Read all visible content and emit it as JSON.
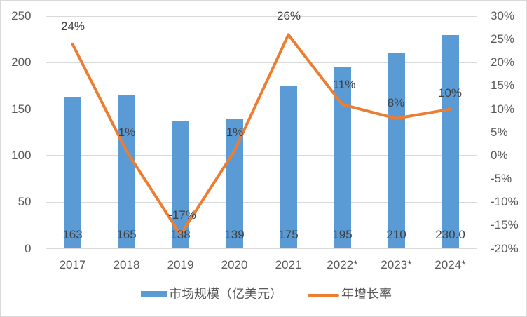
{
  "chart_data": {
    "type": "combo",
    "categories": [
      "2017",
      "2018",
      "2019",
      "2020",
      "2021",
      "2022*",
      "2023*",
      "2024*"
    ],
    "series": [
      {
        "name": "市场规模（亿美元）",
        "type": "bar",
        "axis": "left",
        "color": "#5b9bd5",
        "values": [
          163,
          165,
          138,
          139,
          175,
          195,
          210,
          230
        ],
        "labels": [
          "163",
          "165",
          "138",
          "139",
          "175",
          "195",
          "210",
          "230.0"
        ]
      },
      {
        "name": "年增长率",
        "type": "line",
        "axis": "right",
        "color": "#ed7d31",
        "values": [
          24,
          1,
          -17,
          1,
          26,
          11,
          8,
          10
        ],
        "labels": [
          "24%",
          "1%",
          "-17%",
          "1%",
          "26%",
          "11%",
          "8%",
          "10%"
        ]
      }
    ],
    "left_axis": {
      "min": 0,
      "max": 250,
      "step": 50,
      "ticks": [
        "0",
        "50",
        "100",
        "150",
        "200",
        "250"
      ]
    },
    "right_axis": {
      "min": -20,
      "max": 30,
      "step": 5,
      "ticks": [
        "-20%",
        "-15%",
        "-10%",
        "-5%",
        "0%",
        "5%",
        "10%",
        "15%",
        "20%",
        "25%",
        "30%"
      ]
    },
    "grid": true,
    "legend_position": "bottom",
    "colors": {
      "bar": "#5b9bd5",
      "line": "#ed7d31",
      "gridline": "#d9d9d9",
      "axis_text": "#595959",
      "label_text": "#404040",
      "border": "#d9d9d9",
      "background": "#ffffff"
    }
  }
}
